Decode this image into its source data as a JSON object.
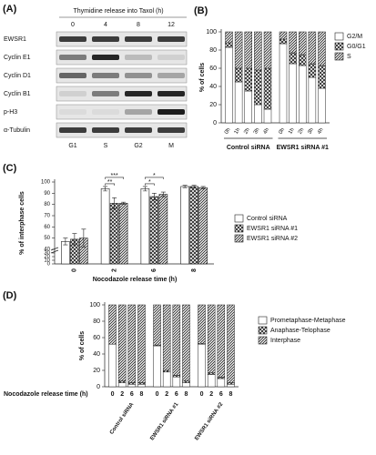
{
  "blot": {
    "label": "(A)",
    "title": "Thymidine release into Taxol (h)",
    "timepoints": [
      "0",
      "4",
      "8",
      "12"
    ],
    "rows": [
      "EWSR1",
      "Cyclin E1",
      "Cyclin D1",
      "Cyclin B1",
      "p-H3",
      "α-Tubulin"
    ],
    "phases": [
      "G1",
      "S",
      "G2",
      "M"
    ]
  },
  "chart_data": [
    {
      "type": "stacked_bar",
      "label": "(B)",
      "ylabel": "% of cells",
      "categories": [
        "0h",
        "1h",
        "2h",
        "3h",
        "4h",
        "0h",
        "1h",
        "2h",
        "3h",
        "4h"
      ],
      "group_labels": [
        "Control siRNA",
        "EWSR1 siRNA #1"
      ],
      "series": [
        {
          "name": "G2/M",
          "pattern": "white",
          "values": [
            83,
            45,
            35,
            20,
            15,
            87,
            65,
            63,
            50,
            38
          ]
        },
        {
          "name": "G0/G1",
          "pattern": "crosshatch",
          "values": [
            5,
            15,
            25,
            38,
            45,
            5,
            12,
            12,
            15,
            25
          ]
        },
        {
          "name": "S",
          "pattern": "diagonal",
          "values": [
            12,
            40,
            40,
            42,
            40,
            8,
            23,
            25,
            35,
            37
          ]
        }
      ],
      "ylim": [
        0,
        100
      ],
      "yticks": [
        0,
        20,
        40,
        60,
        80,
        100
      ],
      "legend": "upper right"
    },
    {
      "type": "grouped_bar",
      "label": "(C)",
      "ylabel": "% of interphase cells",
      "xlabel": "Nocodazole release time (h)",
      "categories": [
        "0",
        "2",
        "6",
        "8"
      ],
      "series": [
        {
          "name": "Control siRNA",
          "pattern": "white",
          "values": [
            47,
            94,
            94,
            96
          ],
          "errors": [
            3,
            2,
            2,
            1
          ]
        },
        {
          "name": "EWSR1 siRNA #1",
          "pattern": "crosshatch",
          "values": [
            49,
            81,
            87,
            96
          ],
          "errors": [
            5,
            5,
            3,
            1
          ]
        },
        {
          "name": "EWSR1 siRNA #2",
          "pattern": "diagonal",
          "values": [
            50,
            81,
            89,
            95
          ],
          "errors": [
            8,
            1,
            2,
            1
          ]
        }
      ],
      "annotations": [
        {
          "text": "**",
          "x": "2",
          "between": [
            "Control siRNA",
            "EWSR1 siRNA #1"
          ]
        },
        {
          "text": "***",
          "x": "2",
          "between": [
            "Control siRNA",
            "EWSR1 siRNA #2"
          ]
        },
        {
          "text": "*",
          "x": "6",
          "between": [
            "Control siRNA",
            "EWSR1 siRNA #1"
          ]
        },
        {
          "text": "*",
          "x": "6",
          "between": [
            "Control siRNA",
            "EWSR1 siRNA #2"
          ]
        }
      ],
      "ylim": [
        0,
        100
      ],
      "ybreak": 40,
      "yticks": [
        0,
        10,
        20,
        30,
        40,
        50,
        60,
        70,
        80,
        90,
        100
      ],
      "legend": "right"
    },
    {
      "type": "stacked_bar",
      "label": "(D)",
      "ylabel": "% of cells",
      "xlabel": "Nocodazole release time (h)",
      "categories": [
        "0",
        "2",
        "6",
        "8",
        "0",
        "2",
        "6",
        "8",
        "0",
        "2",
        "6",
        "8"
      ],
      "group_labels": [
        "Control siRNA",
        "EWSR1 siRNA #1",
        "EWSR1 siRNA #2"
      ],
      "series": [
        {
          "name": "Prometaphase-Metaphase",
          "pattern": "white",
          "values": [
            52,
            5,
            3,
            3,
            50,
            18,
            12,
            5,
            52,
            15,
            10,
            3
          ]
        },
        {
          "name": "Anaphase-Telophase",
          "pattern": "crosshatch",
          "values": [
            0,
            2,
            2,
            2,
            1,
            2,
            2,
            2,
            1,
            2,
            2,
            2
          ]
        },
        {
          "name": "Interphase",
          "pattern": "diagonal",
          "values": [
            48,
            93,
            95,
            95,
            49,
            80,
            86,
            93,
            47,
            83,
            88,
            95
          ]
        }
      ],
      "ylim": [
        0,
        100
      ],
      "yticks": [
        0,
        20,
        40,
        60,
        80,
        100
      ],
      "legend": "right"
    }
  ]
}
